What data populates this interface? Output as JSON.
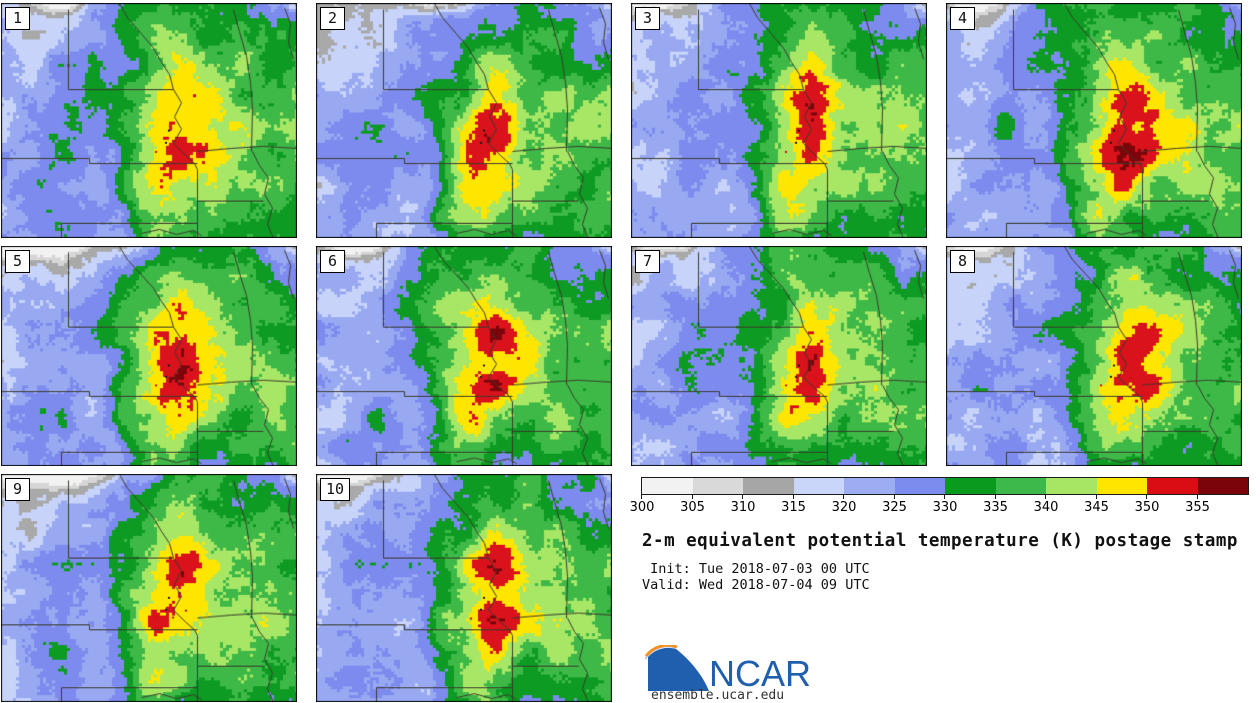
{
  "figure": {
    "title": "2-m equivalent potential temperature (K) postage stamp",
    "init_line": " Init: Tue 2018-07-03 00 UTC",
    "valid_line": "Valid: Wed 2018-07-04 09 UTC"
  },
  "panels": [
    {
      "label": "1"
    },
    {
      "label": "2"
    },
    {
      "label": "3"
    },
    {
      "label": "4"
    },
    {
      "label": "5"
    },
    {
      "label": "6"
    },
    {
      "label": "7"
    },
    {
      "label": "8"
    },
    {
      "label": "9"
    },
    {
      "label": "10"
    }
  ],
  "colorbar": {
    "tick_labels": [
      "300",
      "305",
      "310",
      "315",
      "320",
      "325",
      "330",
      "335",
      "340",
      "345",
      "350",
      "355"
    ],
    "segment_colors": [
      "#f2f2f2",
      "#d9d9d9",
      "#a6a6a6",
      "#c9d5f9",
      "#9dadf4",
      "#7b8bee",
      "#0a9b1e",
      "#3cb94a",
      "#a6e664",
      "#ffe600",
      "#da0d15",
      "#7a040a"
    ]
  },
  "logo": {
    "text": "NCAR",
    "url": "ensemble.ucar.edu",
    "blue": "#1f5fad",
    "orange": "#f5911e"
  },
  "map_palette": {
    "bins": [
      305,
      310,
      315,
      320,
      325,
      330,
      335,
      340,
      345,
      350,
      355
    ],
    "colors": [
      "#f2f2f2",
      "#d6d6d6",
      "#a9a9a9",
      "#c7d3f9",
      "#98a9f2",
      "#7e8bee",
      "#0d9b23",
      "#3eb948",
      "#a8e665",
      "#ffe600",
      "#d9121b",
      "#7c040b"
    ],
    "border_line": "#3a3a2c",
    "marker_red": "#cf1010",
    "marker_black": "#1a1a1a"
  },
  "chart_data": {
    "type": "heatmap",
    "title": "2-m equivalent potential temperature (K) postage stamp",
    "variable": "2-m equivalent potential temperature",
    "units": "K",
    "init": "Tue 2018-07-03 00 UTC",
    "valid": "Wed 2018-07-04 09 UTC",
    "ensemble_members": [
      "1",
      "2",
      "3",
      "4",
      "5",
      "6",
      "7",
      "8",
      "9",
      "10"
    ],
    "grid": {
      "columns": 4,
      "rows": 3
    },
    "colorbar": {
      "levels": [
        300,
        305,
        310,
        315,
        320,
        325,
        330,
        335,
        340,
        345,
        350,
        355
      ],
      "extended_above": true,
      "colors": [
        "#f2f2f2",
        "#d9d9d9",
        "#a6a6a6",
        "#c9d5f9",
        "#9dadf4",
        "#7b8bee",
        "#0a9b1e",
        "#3cb94a",
        "#a6e664",
        "#ffe600",
        "#da0d15",
        "#7a040a"
      ],
      "legend_position": "bottom-right"
    },
    "region_depicted": "Central United States",
    "source_label": "ensemble.ucar.edu"
  }
}
